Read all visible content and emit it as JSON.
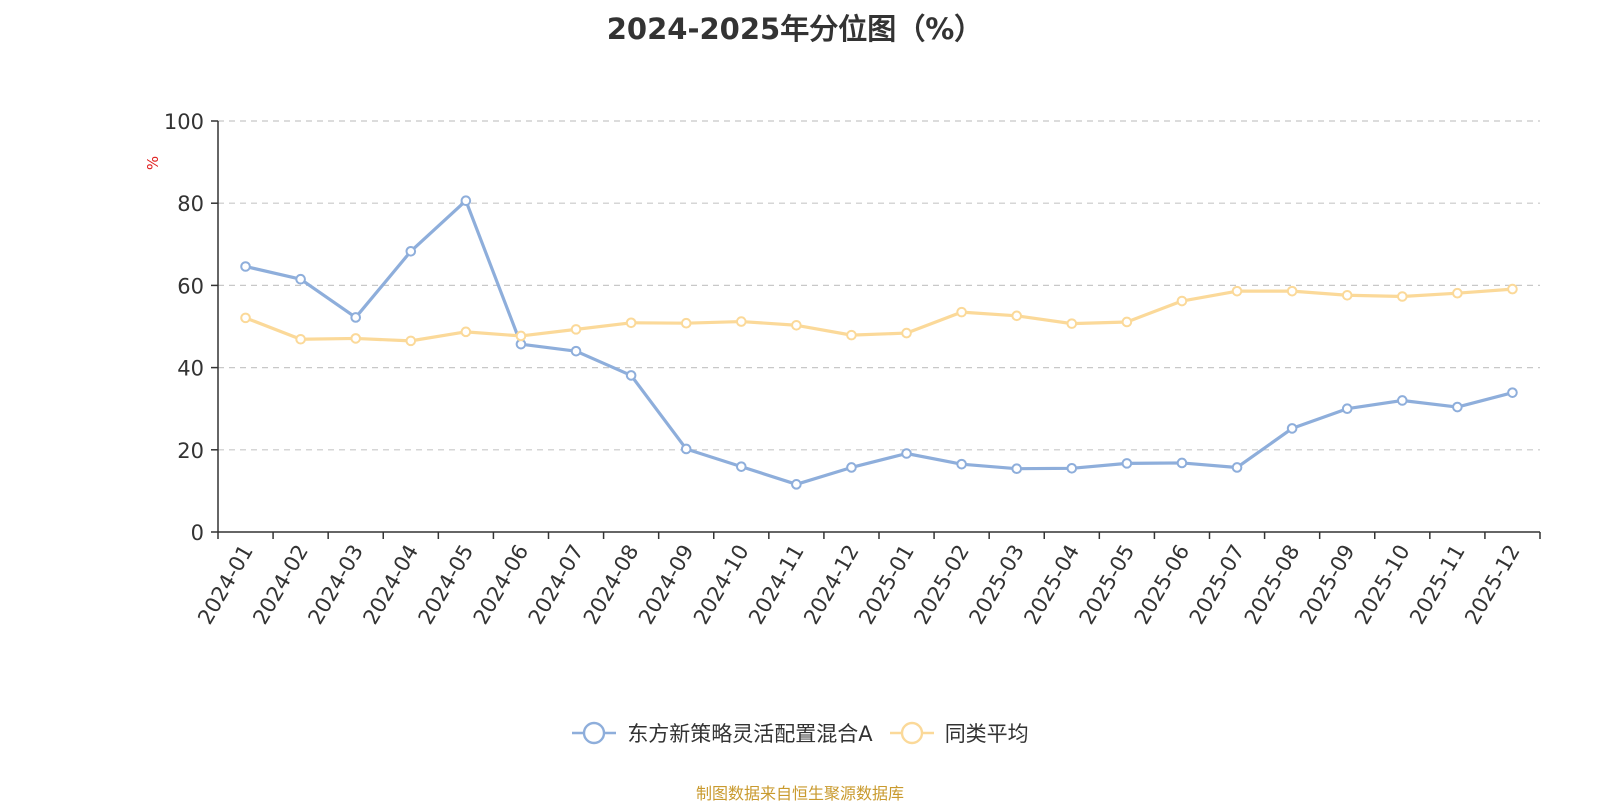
{
  "chart_data": {
    "type": "line",
    "title": "2024-2025年分位图（%）",
    "ylabel": "%",
    "xlabel": "",
    "ylim": [
      0,
      100
    ],
    "yticks": [
      0,
      20,
      40,
      60,
      80,
      100
    ],
    "grid": true,
    "legend_position": "bottom",
    "categories": [
      "2024-01",
      "2024-02",
      "2024-03",
      "2024-04",
      "2024-05",
      "2024-06",
      "2024-07",
      "2024-08",
      "2024-09",
      "2024-10",
      "2024-11",
      "2024-12",
      "2025-01",
      "2025-02",
      "2025-03",
      "2025-04",
      "2025-05",
      "2025-06",
      "2025-07",
      "2025-08",
      "2025-09",
      "2025-10",
      "2025-11",
      "2025-12"
    ],
    "series": [
      {
        "name": "东方新策略灵活配置混合A",
        "color": "#8eaedb",
        "values": [
          64.6,
          61.5,
          52.2,
          68.3,
          80.6,
          45.7,
          44.0,
          38.1,
          20.2,
          15.9,
          11.6,
          15.7,
          19.1,
          16.5,
          15.4,
          15.5,
          16.7,
          16.8,
          15.7,
          25.2,
          30.0,
          32.0,
          30.4,
          33.9
        ]
      },
      {
        "name": "同类平均",
        "color": "#fbd999",
        "values": [
          52.1,
          46.9,
          47.1,
          46.5,
          48.7,
          47.7,
          49.3,
          50.9,
          50.8,
          51.2,
          50.3,
          47.9,
          48.4,
          53.5,
          52.6,
          50.7,
          51.1,
          56.2,
          58.6,
          58.6,
          57.6,
          57.3,
          58.1,
          59.1
        ]
      }
    ]
  },
  "source_note": "制图数据来自恒生聚源数据库"
}
